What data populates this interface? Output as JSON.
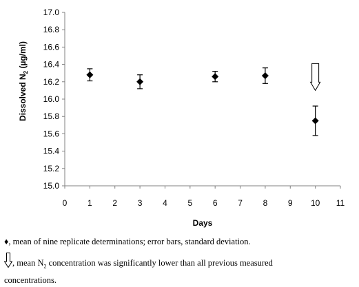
{
  "chart_data": {
    "type": "scatter",
    "xlabel": "Days",
    "ylabel_main": "Dissolved N",
    "ylabel_sub": "2",
    "ylabel_unit": " (µg/ml)",
    "xlim": [
      0,
      11
    ],
    "ylim": [
      15.0,
      17.0
    ],
    "xticks": [
      "0",
      "1",
      "2",
      "3",
      "4",
      "5",
      "6",
      "7",
      "8",
      "9",
      "10",
      "11"
    ],
    "yticks": [
      "15.0",
      "15.2",
      "15.4",
      "15.6",
      "15.8",
      "16.0",
      "16.2",
      "16.4",
      "16.6",
      "16.8",
      "17.0"
    ],
    "points": [
      {
        "x": 1,
        "y": 16.28,
        "err": 0.07
      },
      {
        "x": 3,
        "y": 16.2,
        "err": 0.08
      },
      {
        "x": 6,
        "y": 16.26,
        "err": 0.06
      },
      {
        "x": 8,
        "y": 16.27,
        "err": 0.09
      },
      {
        "x": 10,
        "y": 15.75,
        "err": 0.17
      }
    ],
    "annotation_arrow": {
      "x": 10,
      "y_top": 16.41,
      "y_bottom": 16.1
    },
    "marker_color": "#000000"
  },
  "caption": {
    "line1_symbol": "♦",
    "line1_text": ", mean of nine replicate determinations; error bars, standard deviation.",
    "line2_text_a": ", mean N",
    "line2_sub": "2",
    "line2_text_b": " concentration was significantly lower than all previous measured",
    "line2_text_c": "concentrations."
  }
}
